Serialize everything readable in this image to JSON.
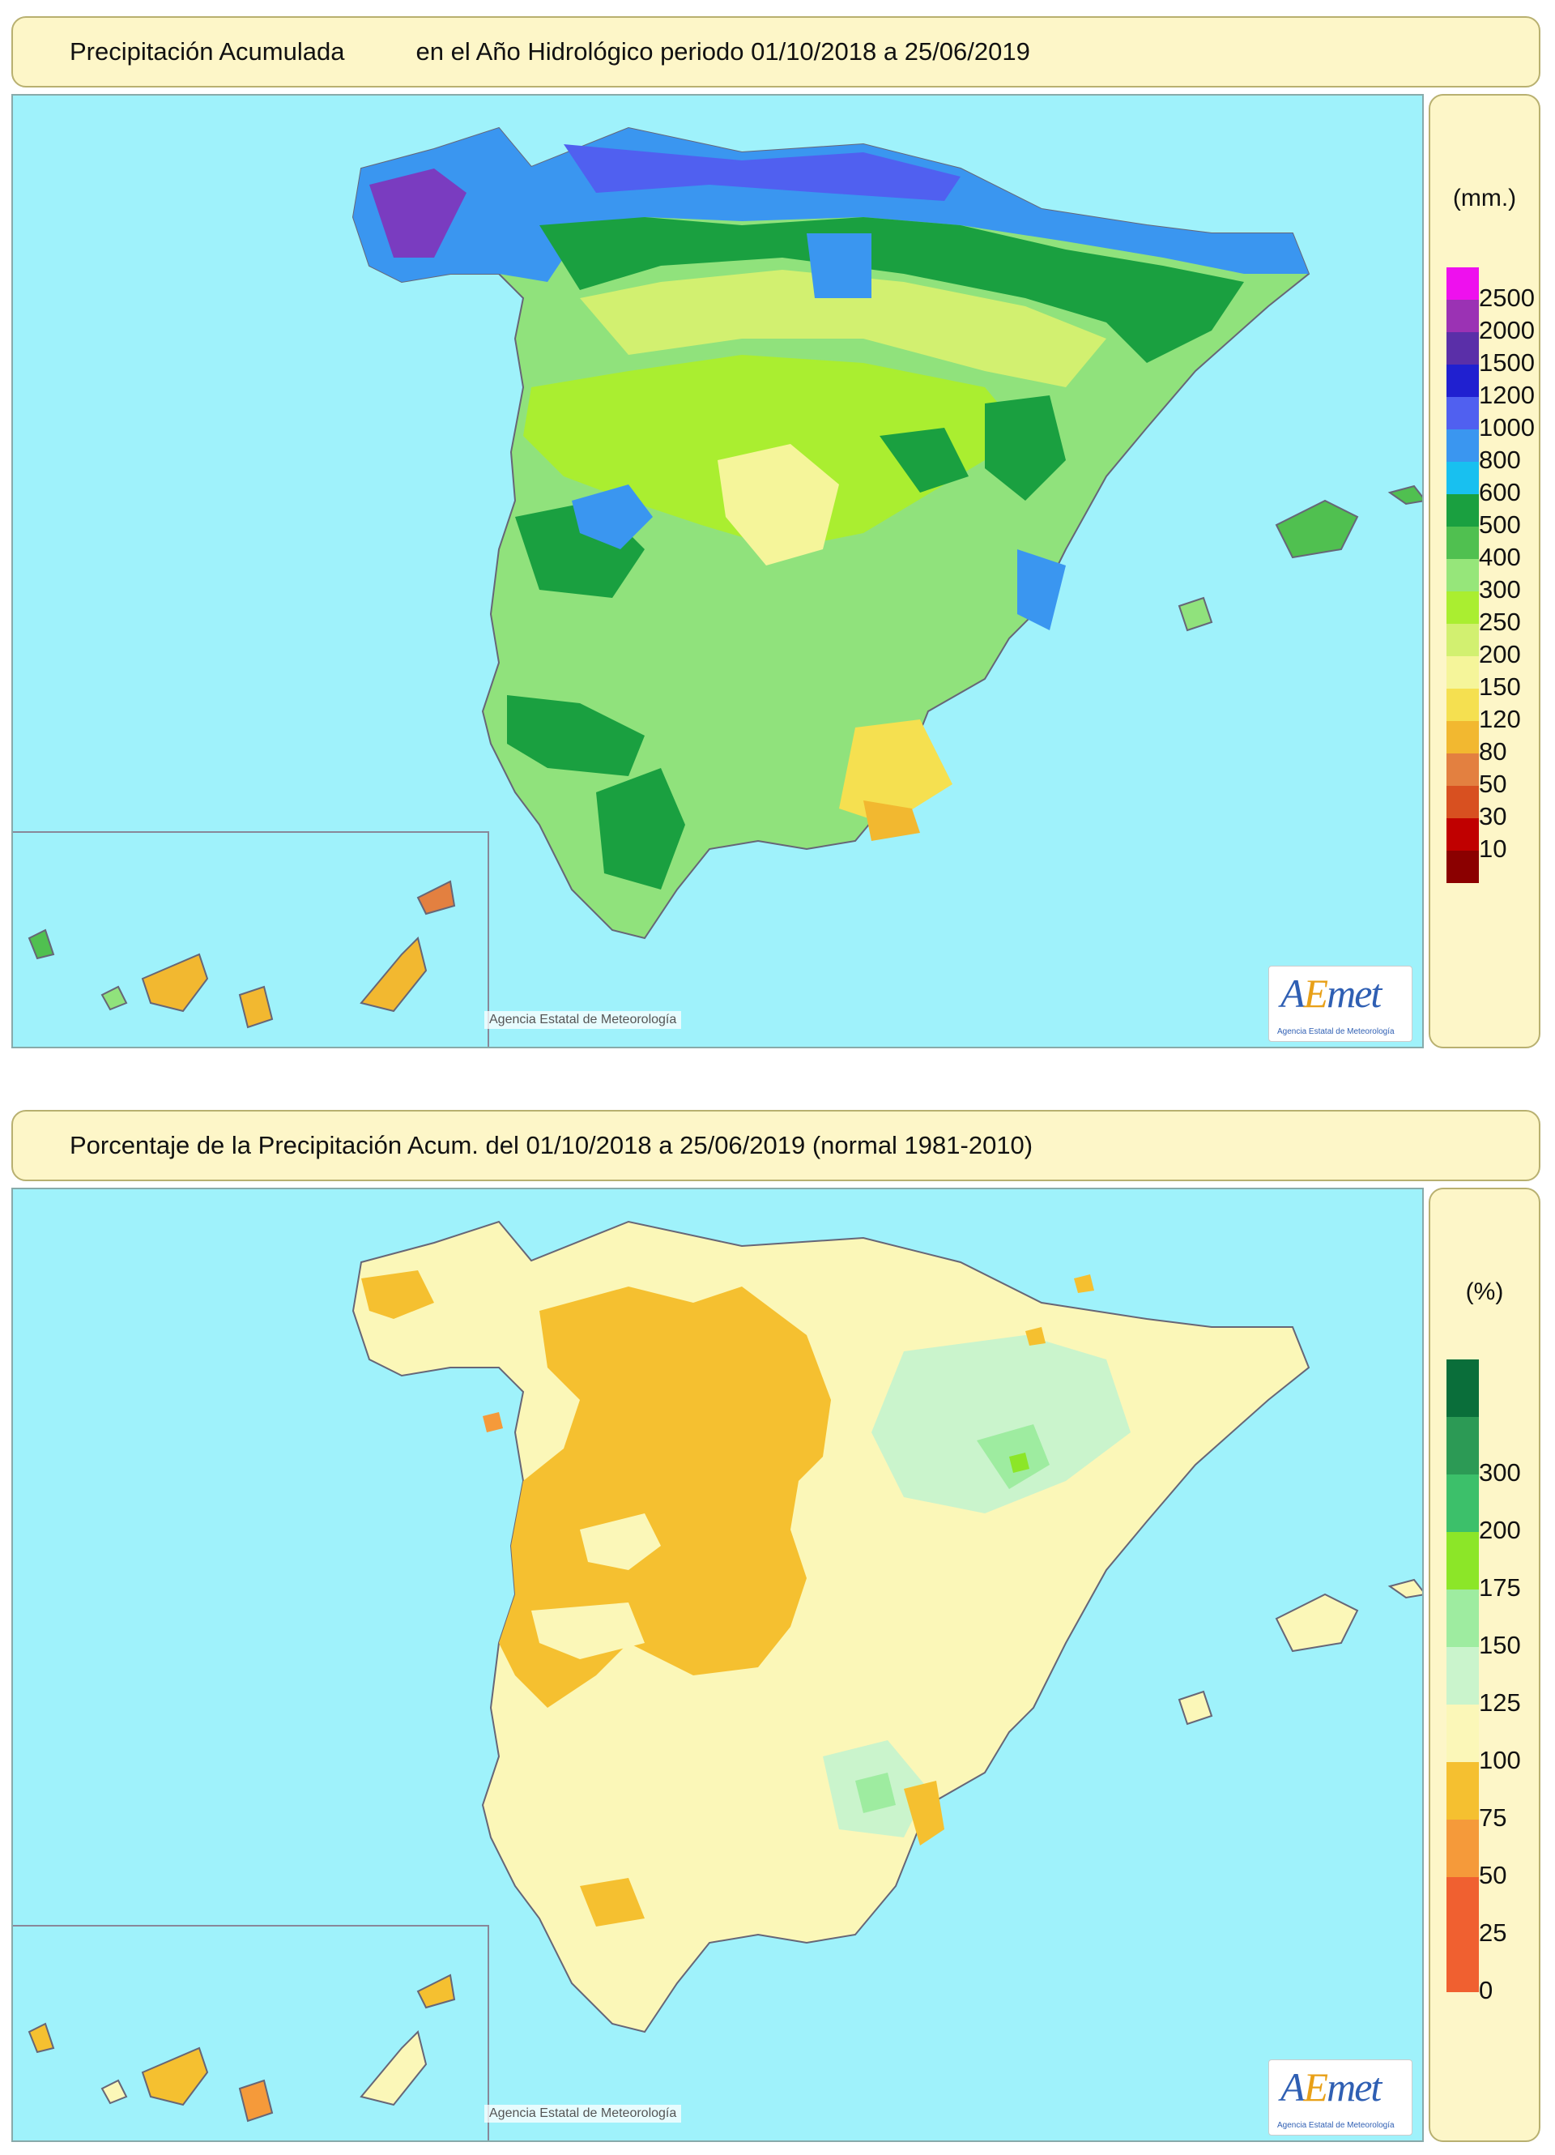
{
  "panels": [
    {
      "title_part1": "Precipitación Acumulada",
      "title_part2": "en el Año Hidrológico  periodo 01/10/2018 a 25/06/2019",
      "legend_unit": "(mm.)",
      "legend": [
        {
          "label": "2500",
          "color": "#ee10ee"
        },
        {
          "label": "2000",
          "color": "#9b32b4"
        },
        {
          "label": "1500",
          "color": "#5a2fa8"
        },
        {
          "label": "1200",
          "color": "#2020d0"
        },
        {
          "label": "1000",
          "color": "#5060f0"
        },
        {
          "label": "800",
          "color": "#3a96f0"
        },
        {
          "label": "600",
          "color": "#18c0f0"
        },
        {
          "label": "500",
          "color": "#1aa040"
        },
        {
          "label": "400",
          "color": "#50c050"
        },
        {
          "label": "300",
          "color": "#96e67a"
        },
        {
          "label": "250",
          "color": "#aaee30"
        },
        {
          "label": "200",
          "color": "#d2f070"
        },
        {
          "label": "150",
          "color": "#f5f59a"
        },
        {
          "label": "120",
          "color": "#f5e050"
        },
        {
          "label": "80",
          "color": "#f2b830"
        },
        {
          "label": "50",
          "color": "#e38040"
        },
        {
          "label": "30",
          "color": "#d85020"
        },
        {
          "label": "10",
          "color": "#c00000"
        },
        {
          "label": "",
          "color": "#8b0000"
        }
      ],
      "copyright": "Agencia Estatal de Meteorología",
      "logo": "AEmet",
      "logo_sub": "Agencia Estatal de Meteorología"
    },
    {
      "title_part1": "Porcentaje de la Precipitación Acum. del 01/10/2018 a  25/06/2019  (normal 1981-2010)",
      "title_part2": "",
      "legend_unit": "(%)",
      "legend": [
        {
          "label": "",
          "color": "#0a6e3a"
        },
        {
          "label": "300",
          "color": "#2c9a55"
        },
        {
          "label": "200",
          "color": "#3cc06a"
        },
        {
          "label": "175",
          "color": "#8ce628"
        },
        {
          "label": "150",
          "color": "#9eeca0"
        },
        {
          "label": "125",
          "color": "#caf4cc"
        },
        {
          "label": "100",
          "color": "#fbf7b8"
        },
        {
          "label": "75",
          "color": "#f5c030"
        },
        {
          "label": "50",
          "color": "#f59a3a"
        },
        {
          "label": "25",
          "color": "#f06030"
        },
        {
          "label": "0",
          "color": "#f06030"
        }
      ],
      "copyright": "Agencia Estatal de Meteorología",
      "logo": "AEmet",
      "logo_sub": "Agencia Estatal de Meteorología"
    }
  ]
}
